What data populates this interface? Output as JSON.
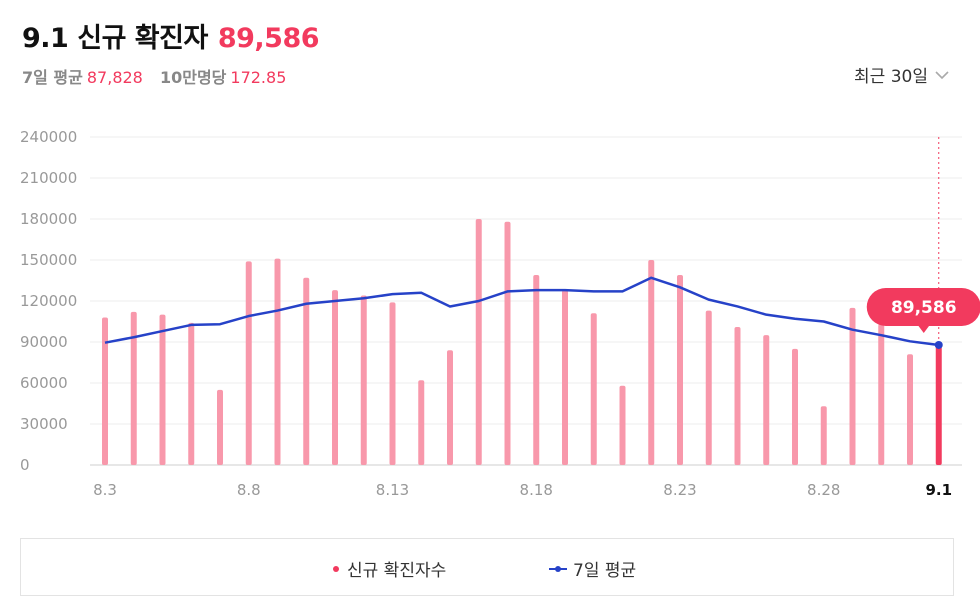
{
  "header": {
    "date": "9.1 신규 확진자",
    "total": "89,586",
    "avg7_label": "7일 평균",
    "avg7_value": "87,828",
    "per100k_label": "10만명당",
    "per100k_value": "172.85"
  },
  "period_select": {
    "label": "최근 30일",
    "icon": "chevron-down-icon"
  },
  "tooltip": {
    "value": "89,586"
  },
  "legend": {
    "daily": "신규 확진자수",
    "avg": "7일 평균"
  },
  "colors": {
    "bar": "#f898ab",
    "bar_highlight": "#f23a5e",
    "avg_line": "#2642c8",
    "accent": "#f23a5e"
  },
  "chart_data": {
    "type": "bar",
    "title": "",
    "ylim": [
      0,
      240000
    ],
    "yticks": [
      "240000",
      "210000",
      "180000",
      "150000",
      "120000",
      "90000",
      "60000",
      "30000",
      "0"
    ],
    "xtick_labels": [
      "8.3",
      "8.8",
      "8.13",
      "8.18",
      "8.23",
      "8.28",
      "9.1"
    ],
    "categories": [
      "8.3",
      "8.4",
      "8.5",
      "8.6",
      "8.7",
      "8.8",
      "8.9",
      "8.10",
      "8.11",
      "8.12",
      "8.13",
      "8.14",
      "8.15",
      "8.16",
      "8.17",
      "8.18",
      "8.19",
      "8.20",
      "8.21",
      "8.22",
      "8.23",
      "8.24",
      "8.25",
      "8.26",
      "8.27",
      "8.28",
      "8.29",
      "8.30",
      "8.31",
      "9.1"
    ],
    "series": [
      {
        "name": "신규 확진자수",
        "type": "bar",
        "values": [
          107900,
          112000,
          110000,
          104000,
          55000,
          149000,
          151000,
          137000,
          128000,
          124000,
          119000,
          62000,
          84000,
          180000,
          178000,
          139000,
          128000,
          111000,
          58000,
          150000,
          139000,
          113000,
          101000,
          95000,
          85000,
          43000,
          115000,
          103000,
          81000,
          89586
        ]
      },
      {
        "name": "7일 평균",
        "type": "line",
        "values": [
          89500,
          93500,
          98000,
          102500,
          103000,
          109000,
          113000,
          118000,
          120000,
          122000,
          125000,
          126000,
          116000,
          120000,
          127000,
          128000,
          128000,
          127000,
          127000,
          137000,
          130000,
          121000,
          116000,
          110000,
          107000,
          105000,
          99000,
          95000,
          90500,
          87828
        ]
      }
    ]
  }
}
